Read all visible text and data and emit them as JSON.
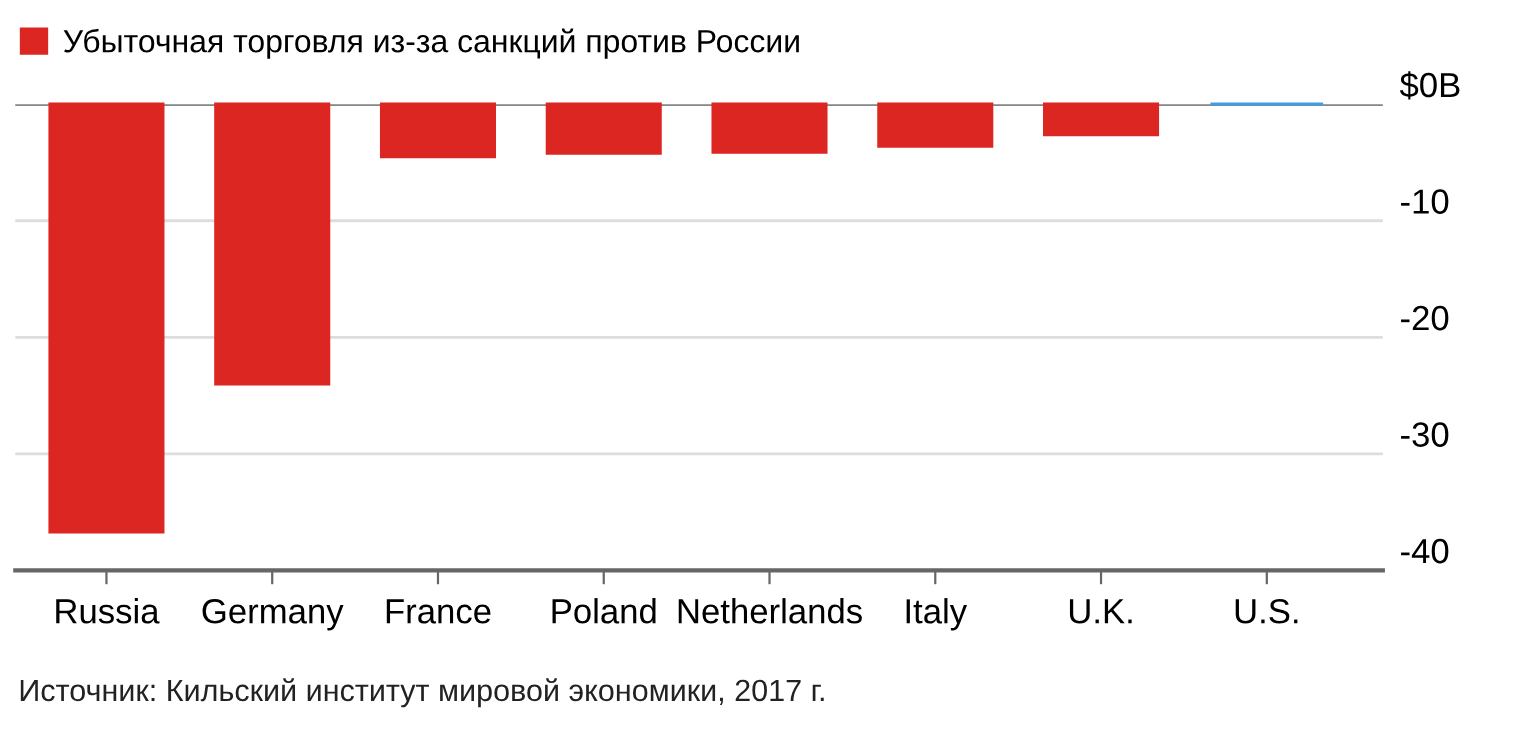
{
  "chart_data": {
    "type": "bar",
    "categories": [
      "Russia",
      "Germany",
      "France",
      "Poland",
      "Netherlands",
      "Italy",
      "U.K.",
      "U.S."
    ],
    "series": [
      {
        "name": "Убыточная торговля из-за санкций против России",
        "color": "#dc2622",
        "colors": [
          "#dc2622",
          "#dc2622",
          "#dc2622",
          "#dc2622",
          "#dc2622",
          "#dc2622",
          "#dc2622",
          "#4a9ad8"
        ],
        "values": [
          -36.7,
          -24.0,
          -4.5,
          -4.2,
          -4.1,
          -3.6,
          -2.6,
          0
        ]
      }
    ],
    "ylim": [
      -40,
      0
    ],
    "yticks": [
      {
        "value": 0,
        "label": "$0B"
      },
      -10,
      -20,
      -30,
      -40
    ],
    "grid": "y",
    "legend": "top left",
    "annotations": [
      "Источник: Кильский институт мировой экономики, 2017 г."
    ]
  }
}
